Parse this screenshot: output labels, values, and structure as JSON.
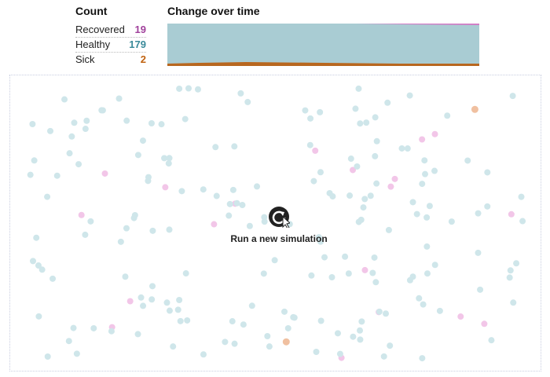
{
  "count_panel": {
    "title": "Count",
    "rows": [
      {
        "label": "Recovered",
        "value": 19
      },
      {
        "label": "Healthy",
        "value": 179
      },
      {
        "label": "Sick",
        "value": 2
      }
    ]
  },
  "chart": {
    "title": "Change over time"
  },
  "button": {
    "label": "Run a new simulation"
  }
}
